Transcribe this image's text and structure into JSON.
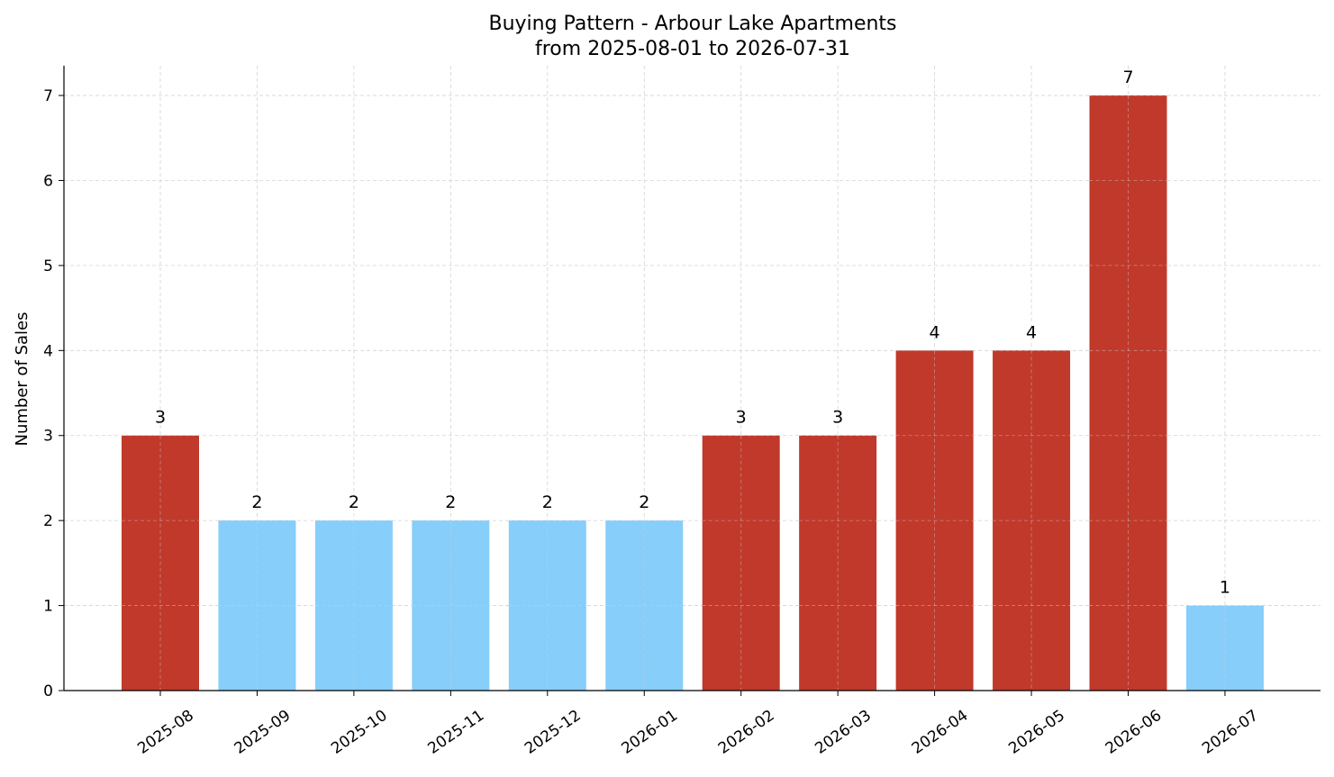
{
  "chart_data": {
    "type": "bar",
    "title": "Buying Pattern - Arbour Lake Apartments",
    "subtitle": "from 2025-08-01 to 2026-07-31",
    "xlabel": "",
    "ylabel": "Number of Sales",
    "categories": [
      "2025-08",
      "2025-09",
      "2025-10",
      "2025-11",
      "2025-12",
      "2026-01",
      "2026-02",
      "2026-03",
      "2026-04",
      "2026-05",
      "2026-06",
      "2026-07"
    ],
    "values": [
      3,
      2,
      2,
      2,
      2,
      2,
      3,
      3,
      4,
      4,
      7,
      1
    ],
    "bar_colors": [
      "#c0392b",
      "#87cefa",
      "#87cefa",
      "#87cefa",
      "#87cefa",
      "#87cefa",
      "#c0392b",
      "#c0392b",
      "#c0392b",
      "#c0392b",
      "#c0392b",
      "#87cefa"
    ],
    "yticks": [
      0,
      1,
      2,
      3,
      4,
      5,
      6,
      7
    ],
    "ylim": [
      0,
      7.35
    ],
    "grid": true,
    "data_labels": true,
    "xtick_rotation": "35deg"
  }
}
